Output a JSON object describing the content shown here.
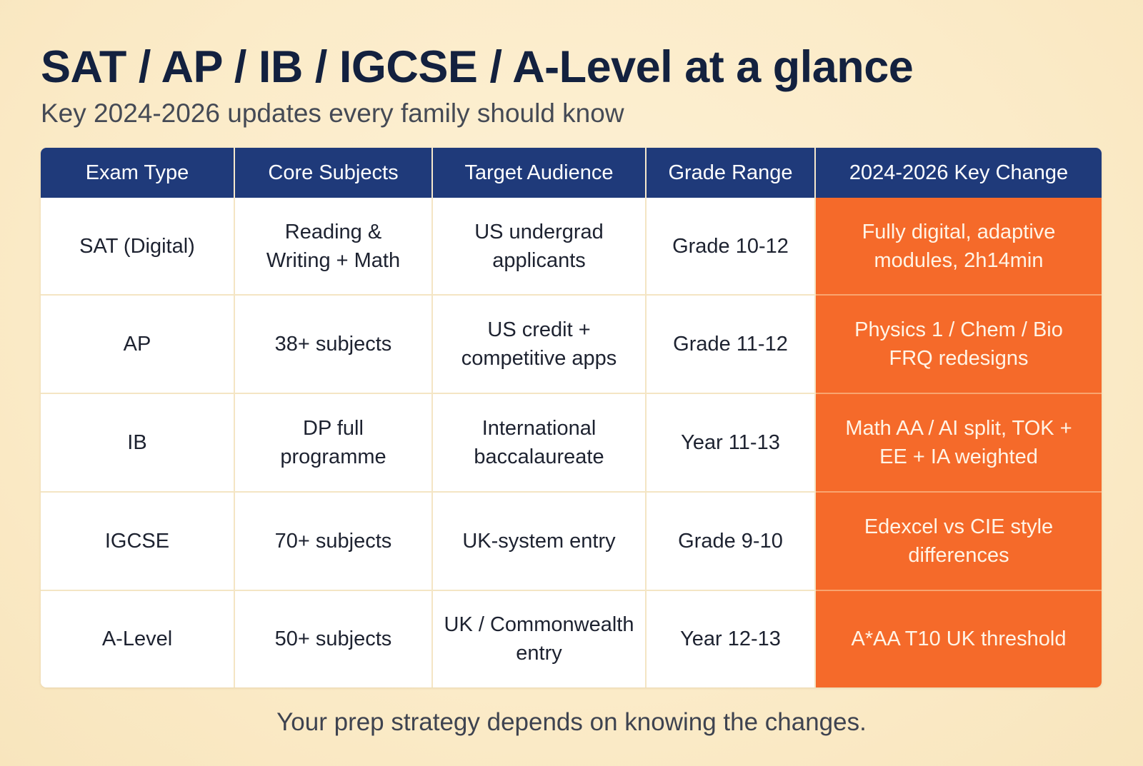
{
  "header": {
    "title": "SAT / AP / IB / IGCSE / A-Level at a glance",
    "subtitle": "Key 2024-2026 updates every family should know"
  },
  "table": {
    "columns": [
      "Exam Type",
      "Core Subjects",
      "Target Audience",
      "Grade Range",
      "2024-2026 Key Change"
    ],
    "rows": [
      [
        "SAT (Digital)",
        "Reading & Writing + Math",
        "US undergrad applicants",
        "Grade 10-12",
        "Fully digital, adaptive modules, 2h14min"
      ],
      [
        "AP",
        "38+ subjects",
        "US credit + competitive apps",
        "Grade 11-12",
        "Physics 1 / Chem / Bio FRQ redesigns"
      ],
      [
        "IB",
        "DP full programme",
        "International baccalaureate",
        "Year 11-13",
        "Math AA / AI split, TOK + EE + IA weighted"
      ],
      [
        "IGCSE",
        "70+ subjects",
        "UK-system entry",
        "Grade 9-10",
        "Edexcel vs CIE style differences"
      ],
      [
        "A-Level",
        "50+ subjects",
        "UK / Commonwealth entry",
        "Year 12-13",
        "A*AA T10 UK threshold"
      ]
    ]
  },
  "footer": {
    "text": "Your prep strategy depends on knowing the changes."
  },
  "colors": {
    "background": "#fbeccb",
    "header_fill": "#1f3a7a",
    "highlight_fill": "#f56a2a",
    "title_text": "#13213f"
  }
}
